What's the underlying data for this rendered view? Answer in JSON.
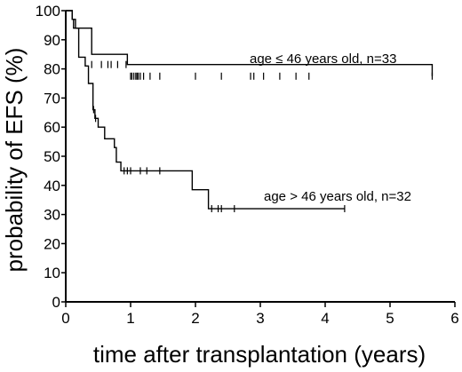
{
  "chart_data": {
    "type": "line",
    "title": "",
    "xlabel": "time after transplantation (years)",
    "ylabel": "probability of EFS (%)",
    "xlim": [
      0,
      6
    ],
    "ylim": [
      0,
      100
    ],
    "xticks": [
      0,
      1,
      2,
      3,
      4,
      5,
      6
    ],
    "yticks": [
      0,
      10,
      20,
      30,
      40,
      50,
      60,
      70,
      80,
      90,
      100
    ],
    "grid": false,
    "step": true,
    "series": [
      {
        "name": "age ≤ 46 years old, n=33",
        "x": [
          0,
          0.1,
          0.15,
          0.4,
          0.95,
          5.65
        ],
        "y": [
          100,
          97,
          94,
          85,
          81.5,
          77.5
        ],
        "censor_x": [
          0.4,
          0.55,
          0.65,
          0.7,
          0.8,
          0.93,
          1.0,
          1.02,
          1.05,
          1.08,
          1.1,
          1.12,
          1.15,
          1.2,
          1.3,
          1.45,
          2.0,
          2.4,
          2.85,
          2.9,
          3.05,
          3.3,
          3.55,
          3.75,
          5.65
        ],
        "censor_y": [
          81.5,
          81.5,
          81.5,
          81.5,
          81.5,
          81.5,
          77.5,
          77.5,
          77.5,
          77.5,
          77.5,
          77.5,
          77.5,
          77.5,
          77.5,
          77.5,
          77.5,
          77.5,
          77.5,
          77.5,
          77.5,
          77.5,
          77.5,
          77.5,
          77.5
        ]
      },
      {
        "name": "age > 46 years old, n=32",
        "x": [
          0,
          0.1,
          0.12,
          0.2,
          0.3,
          0.35,
          0.42,
          0.45,
          0.5,
          0.6,
          0.75,
          0.78,
          0.85,
          1.95,
          2.2,
          4.3
        ],
        "y": [
          100,
          97,
          94,
          84,
          81,
          75,
          66,
          63,
          60,
          56,
          53,
          48,
          45,
          38.5,
          32,
          32
        ],
        "censor_x": [
          0.43,
          0.46,
          0.9,
          0.95,
          1.0,
          1.15,
          1.25,
          1.45,
          2.25,
          2.35,
          2.4,
          2.6,
          4.3
        ],
        "censor_y": [
          66,
          63,
          45,
          45,
          45,
          45,
          45,
          45,
          32,
          32,
          32,
          32,
          32
        ]
      }
    ]
  }
}
